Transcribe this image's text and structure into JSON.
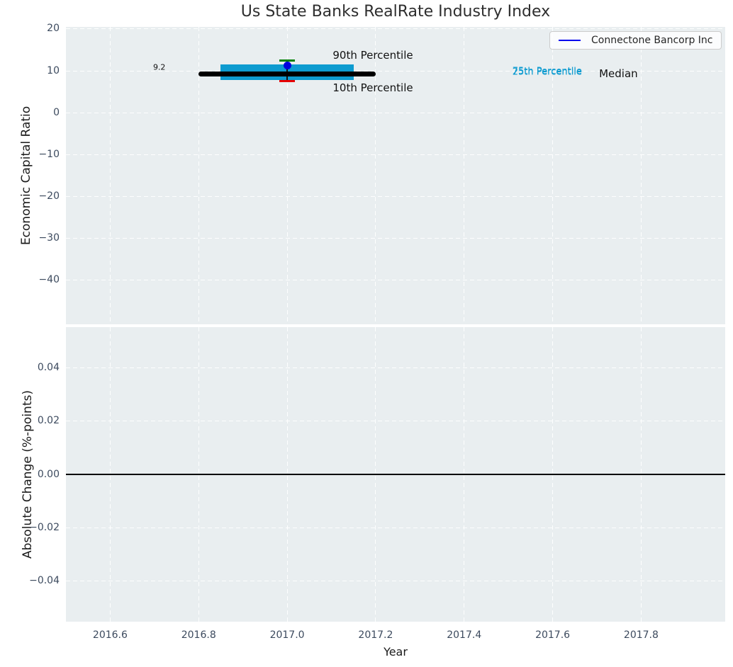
{
  "title": "Us State Banks RealRate Industry Index",
  "legend": {
    "label": "Connectone Bancorp Inc",
    "line_color": "#0000ee"
  },
  "colors": {
    "axes_background": "#e9eef0",
    "grid": "#ffffff",
    "tick_label": "#3c4a5e",
    "box": "#0d9bd0",
    "median": "#000000",
    "p90_cap": "#008000",
    "p10_cap": "#e60000",
    "company_point": "#0000dd"
  },
  "chart_data": {
    "type": "boxplot",
    "title": "Us State Banks RealRate Industry Index",
    "xlabel": "Year",
    "xlim": [
      2016.5,
      2017.99
    ],
    "xticks": [
      {
        "value": 2016.6,
        "label": "2016.6"
      },
      {
        "value": 2016.8,
        "label": "2016.8"
      },
      {
        "value": 2017.0,
        "label": "2017.0"
      },
      {
        "value": 2017.2,
        "label": "2017.2"
      },
      {
        "value": 2017.4,
        "label": "2017.4"
      },
      {
        "value": 2017.6,
        "label": "2017.6"
      },
      {
        "value": 2017.8,
        "label": "2017.8"
      }
    ],
    "top_plot": {
      "ylabel": "Economic Capital Ratio",
      "ylim": [
        -50.6,
        20.5
      ],
      "yticks": [
        {
          "value": 20,
          "label": "20"
        },
        {
          "value": 10,
          "label": "10"
        },
        {
          "value": 0,
          "label": "0"
        },
        {
          "value": -10,
          "label": "−10"
        },
        {
          "value": -20,
          "label": "−20"
        },
        {
          "value": -30,
          "label": "−30"
        },
        {
          "value": -40,
          "label": "−40"
        }
      ],
      "industry_box": {
        "year_center": 2017.0,
        "box_year_start": 2016.85,
        "box_year_end": 2017.15,
        "median_year_start": 2016.8,
        "median_year_end": 2017.2,
        "p90": 12.5,
        "p75": 11.6,
        "median": 9.2,
        "p25": 7.8,
        "p10": 7.5,
        "box_color": "#0d9bd0",
        "median_color": "#000000",
        "whisker_color": "#111111",
        "p90_color": "#008000",
        "p10_color": "#e60000"
      },
      "company_point": {
        "name": "Connectone Bancorp Inc",
        "year": 2017.0,
        "value": 11.2,
        "color": "#0000dd"
      },
      "annotations": [
        {
          "text": "90th Percentile",
          "year": 2017.103,
          "value": 13.7,
          "color": "#111111",
          "size": 15,
          "ha": "left"
        },
        {
          "text": "10th Percentile",
          "year": 2017.103,
          "value": 5.9,
          "color": "#111111",
          "size": 15,
          "ha": "left"
        },
        {
          "text": "9.2",
          "year": 2016.711,
          "value": 10.85,
          "color": "#111111",
          "size": 11,
          "ha": "center"
        },
        {
          "text": "75th Percentile",
          "year": 2017.509,
          "value": 9.9,
          "color": "#0d9bd0",
          "size": 13,
          "ha": "left"
        },
        {
          "text": "25th Percentile",
          "year": 2017.509,
          "value": 9.62,
          "color": "#0d9bd0",
          "size": 13,
          "ha": "left"
        },
        {
          "text": "Median",
          "year": 2017.705,
          "value": 9.4,
          "color": "#111111",
          "size": 15,
          "ha": "left"
        }
      ]
    },
    "bottom_plot": {
      "ylabel": "Absolute Change (%-points)",
      "ylim": [
        -0.0553,
        0.0553
      ],
      "yticks": [
        {
          "value": 0.04,
          "label": "0.04"
        },
        {
          "value": 0.02,
          "label": "0.02"
        },
        {
          "value": 0.0,
          "label": "0.00"
        },
        {
          "value": -0.02,
          "label": "−0.02"
        },
        {
          "value": -0.04,
          "label": "−0.04"
        }
      ],
      "zero_line_value": 0.0
    }
  }
}
